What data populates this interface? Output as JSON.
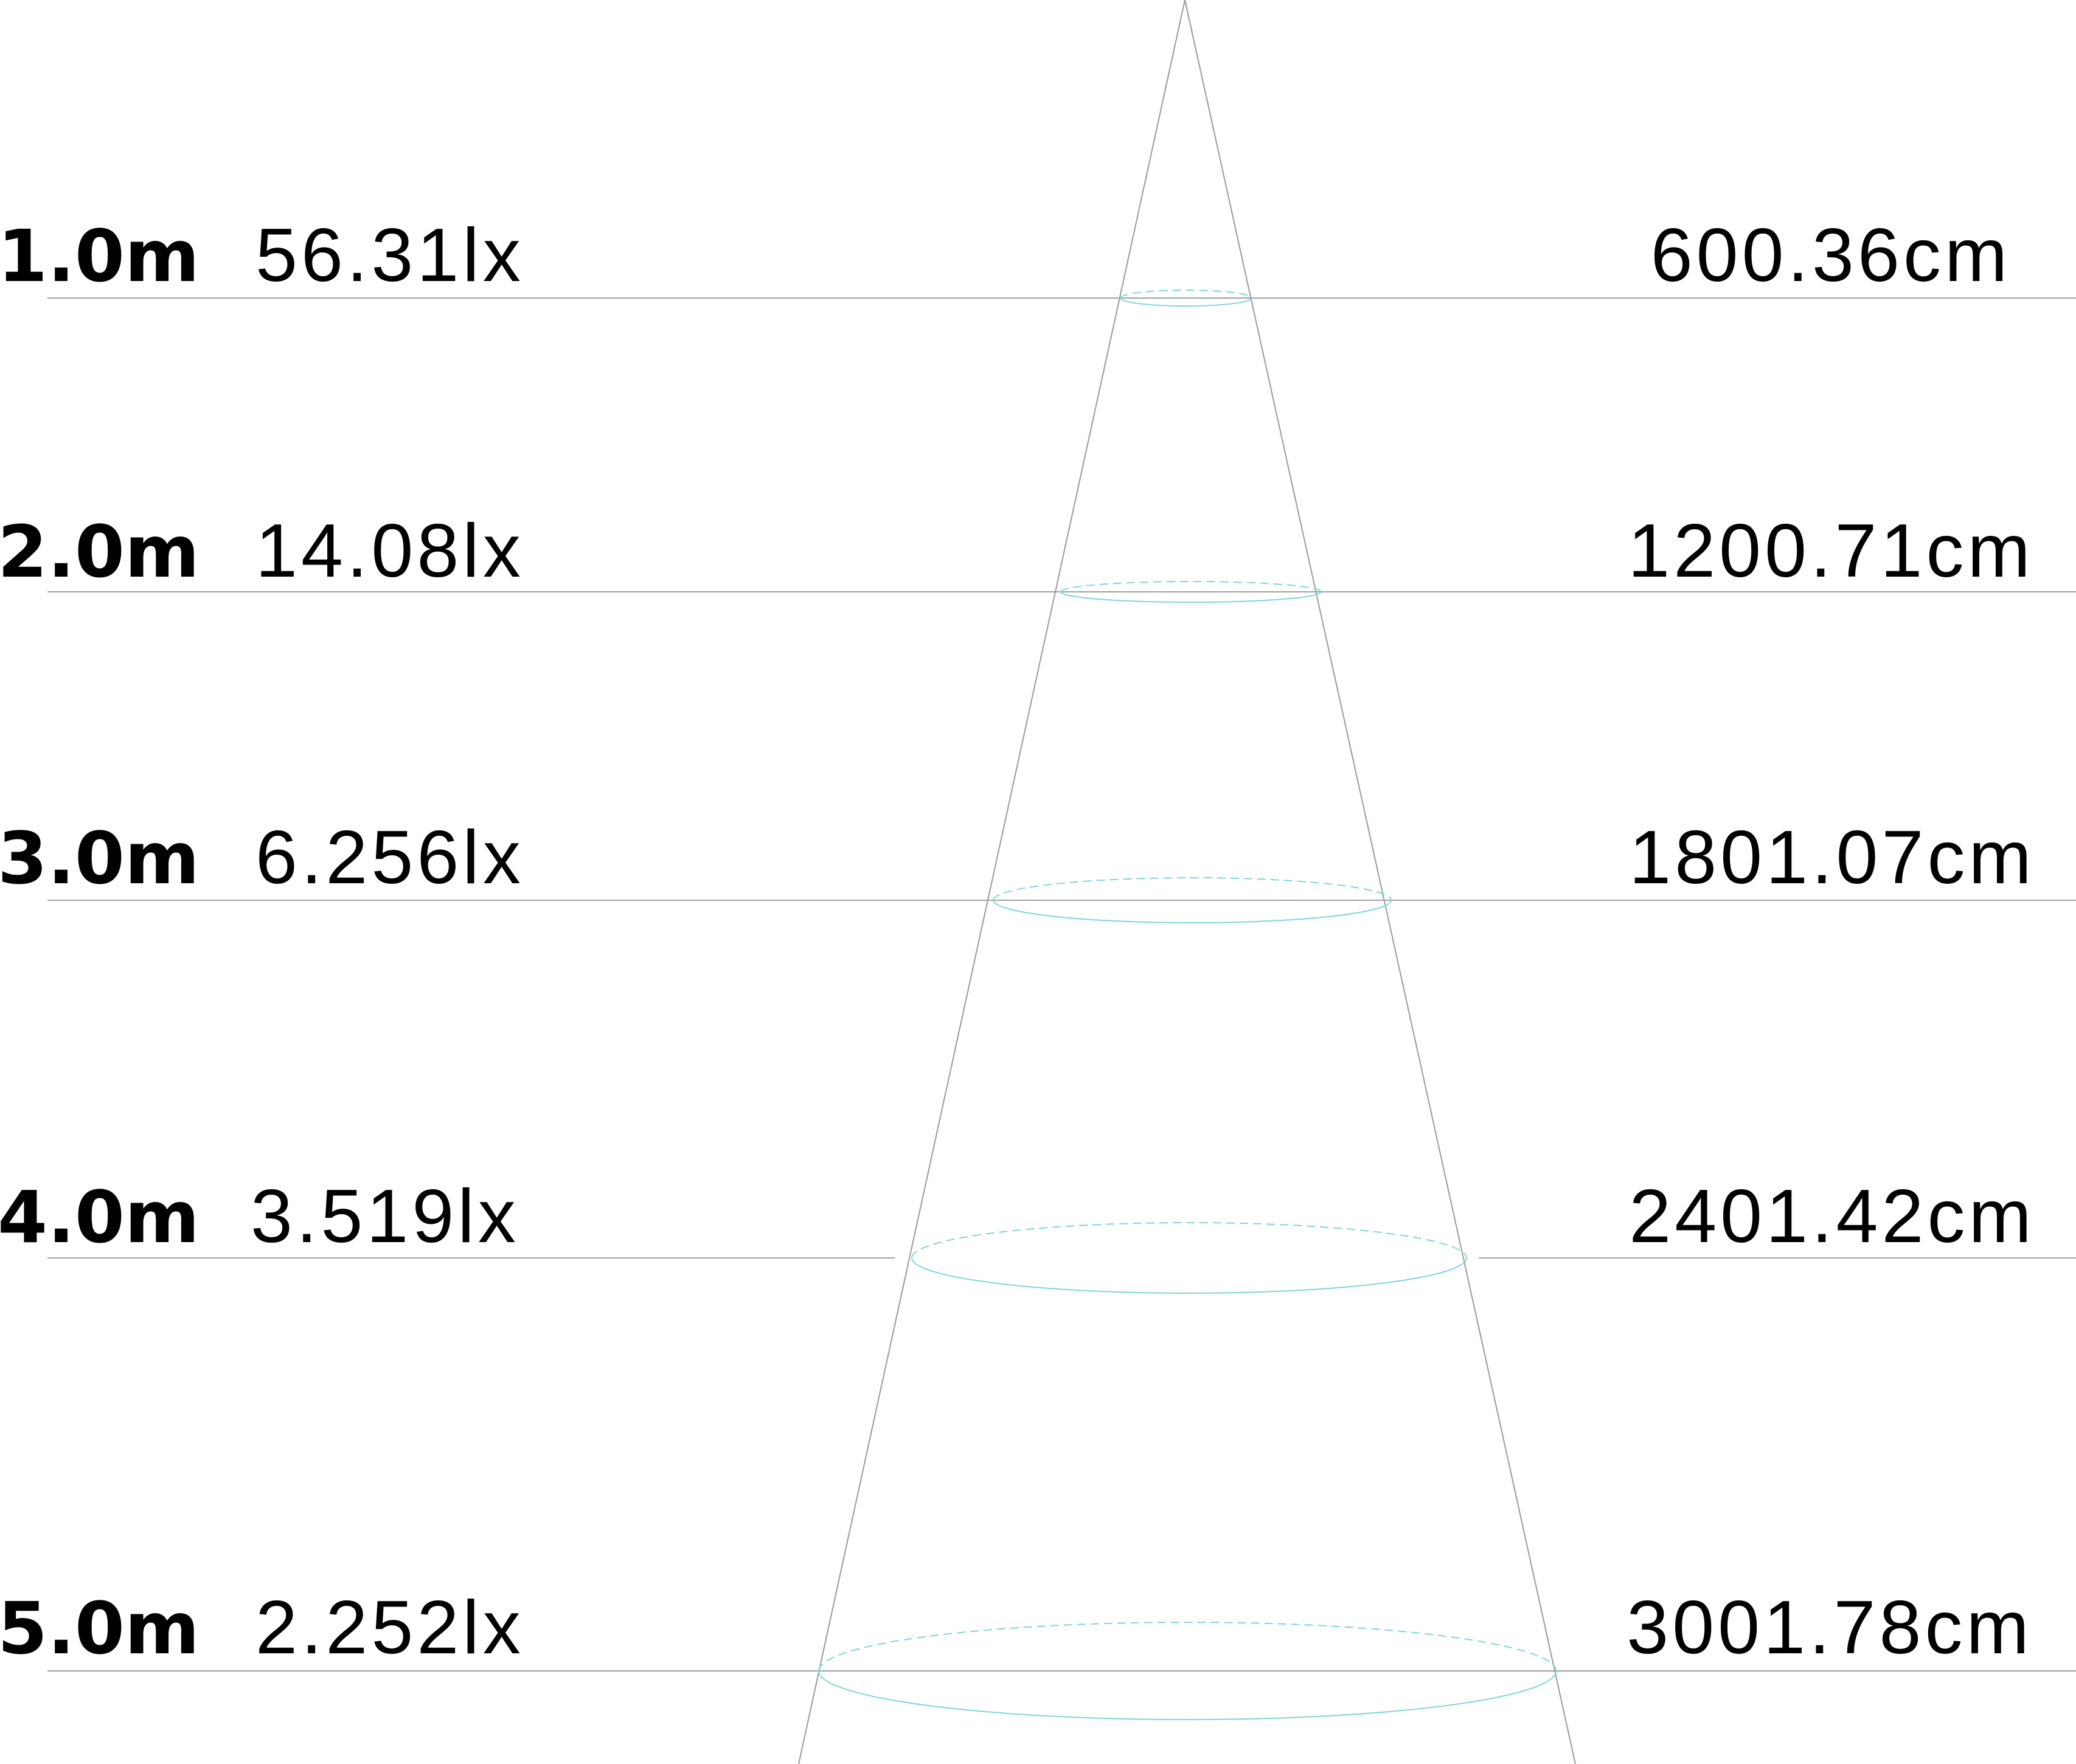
{
  "colors": {
    "beam_edge": "#9a9a9a",
    "level_line": "#a0a0a0",
    "beam_spot": "#7fd6d6",
    "text": "#000000"
  },
  "levels": [
    {
      "distance": "1.0m",
      "illuminance": "56.31lx",
      "diameter": "600.36cm"
    },
    {
      "distance": "2.0m",
      "illuminance": "14.08lx",
      "diameter": "1200.71cm"
    },
    {
      "distance": "3.0m",
      "illuminance": "6.256lx",
      "diameter": "1801.07cm"
    },
    {
      "distance": "4.0m",
      "illuminance": "3.519lx",
      "diameter": "2401.42cm"
    },
    {
      "distance": "5.0m",
      "illuminance": "2.252lx",
      "diameter": "3001.78cm"
    }
  ]
}
